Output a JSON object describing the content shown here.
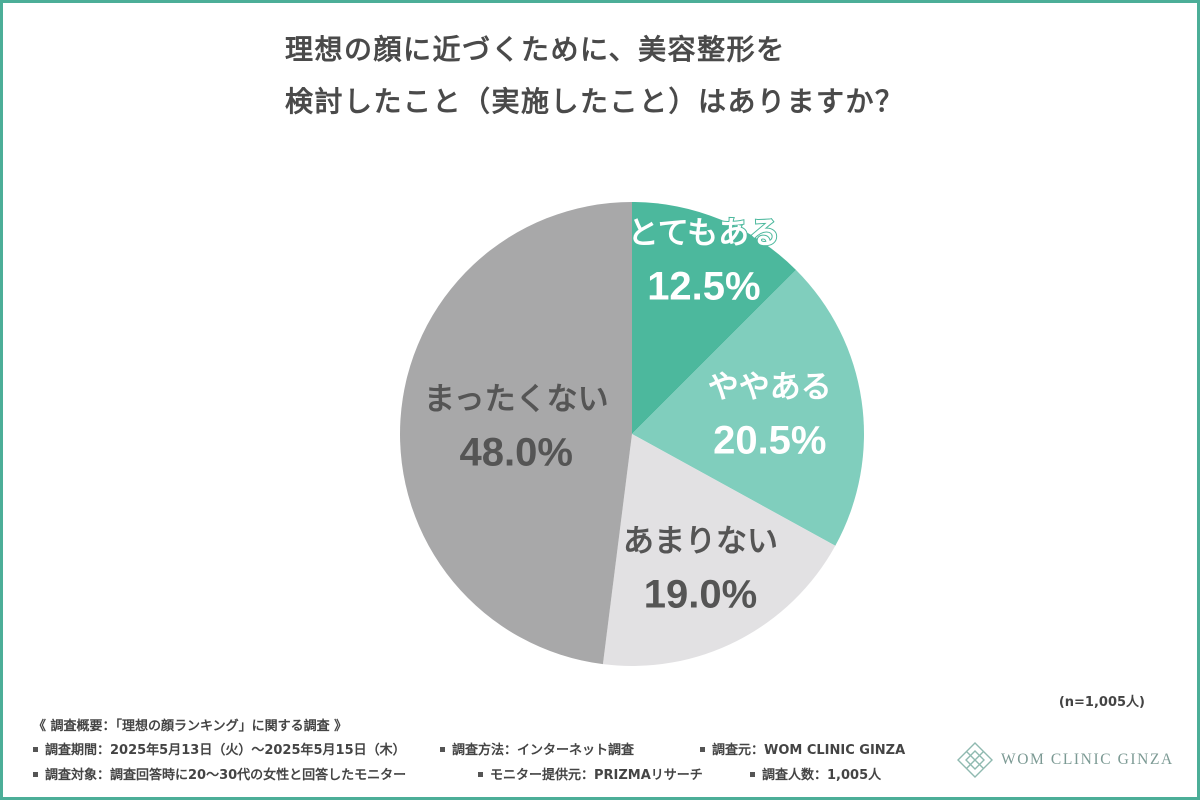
{
  "chart_data": {
    "type": "pie",
    "title": [
      "理想の顔に近づくために、美容整形を",
      "検討したこと（実施したこと）はありますか？"
    ],
    "categories": [
      "とてもある",
      "ややある",
      "あまりない",
      "まったくない"
    ],
    "values": [
      12.5,
      20.5,
      19.0,
      48.0
    ],
    "data_labels": [
      "12.5%",
      "20.5%",
      "19.0%",
      "48.0%"
    ],
    "unit": "%",
    "start": "12 o'clock, clockwise",
    "colors": [
      "#4cb89d",
      "#80cebd",
      "#e2e1e3",
      "#a8a8a9"
    ],
    "label_colors": [
      "#ffffff",
      "#ffffff",
      "#555555",
      "#555555"
    ],
    "legend": "none (labels inside slices)"
  },
  "sample_note": "(n=1,005人)",
  "survey": {
    "heading": "《 調査概要：「理想の顔ランキング」に関する調査 》",
    "period": "調査期間：2025年5月13日（火）～2025年5月15日（木）",
    "method": "調査方法：インターネット調査",
    "source": "調査元：WOM CLINIC GINZA",
    "target": "調査対象：調査回答時に20～30代の女性と回答したモニター",
    "panel": "モニター提供元：PRIZMAリサーチ",
    "respondents": "調査人数：1,005人"
  },
  "brand": {
    "logo_text": "WOM CLINIC GINZA",
    "logo_icon": "diamond-lattice-icon",
    "frame_color": "#4cae98",
    "logo_color": "#7c9a94"
  }
}
